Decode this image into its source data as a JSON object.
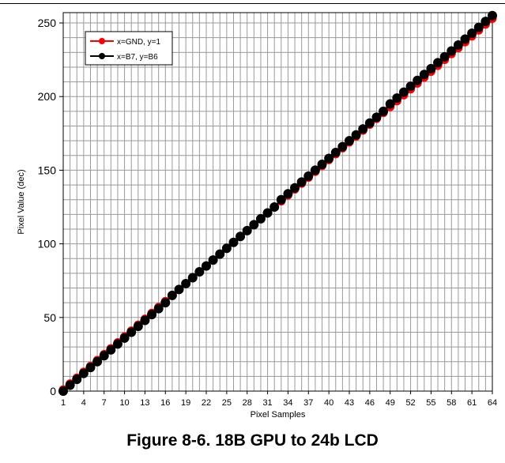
{
  "caption": "Figure 8-6. 18B GPU to 24b LCD",
  "chart_data": {
    "type": "line",
    "title": "",
    "xlabel": "Pixel Samples",
    "ylabel": "Pixel Value (dec)",
    "xlim": [
      1,
      64
    ],
    "ylim": [
      0,
      250
    ],
    "y_ticks": [
      0,
      50,
      100,
      150,
      200,
      250
    ],
    "x_ticks": [
      1,
      4,
      7,
      10,
      13,
      16,
      19,
      22,
      25,
      28,
      31,
      34,
      37,
      40,
      43,
      46,
      49,
      52,
      55,
      58,
      61,
      64
    ],
    "grid": true,
    "legend_position": "top-left",
    "series": [
      {
        "name": "x=GND, y=1",
        "color": "#ff0000",
        "formula": "value = 4*(n-1)+1 for sample n",
        "values": [
          1,
          5,
          9,
          13,
          17,
          21,
          25,
          29,
          33,
          37,
          41,
          45,
          49,
          53,
          57,
          61,
          65,
          69,
          73,
          77,
          81,
          85,
          89,
          93,
          97,
          101,
          105,
          109,
          113,
          117,
          121,
          125,
          129,
          133,
          137,
          141,
          145,
          149,
          153,
          157,
          161,
          165,
          169,
          173,
          177,
          181,
          185,
          189,
          193,
          197,
          201,
          205,
          209,
          213,
          217,
          221,
          225,
          229,
          233,
          237,
          241,
          245,
          249,
          253
        ]
      },
      {
        "name": "x=B7, y=B6",
        "color": "#000000",
        "values": [
          0,
          4,
          8,
          12,
          16,
          20,
          24,
          28,
          32,
          36,
          40,
          44,
          48,
          52,
          56,
          60,
          65,
          69,
          73,
          77,
          81,
          85,
          89,
          93,
          97,
          101,
          105,
          109,
          113,
          117,
          121,
          125,
          130,
          134,
          138,
          142,
          146,
          150,
          154,
          158,
          162,
          166,
          170,
          174,
          178,
          182,
          186,
          190,
          195,
          199,
          203,
          207,
          211,
          215,
          219,
          223,
          227,
          231,
          235,
          239,
          243,
          247,
          251,
          255
        ]
      }
    ]
  }
}
